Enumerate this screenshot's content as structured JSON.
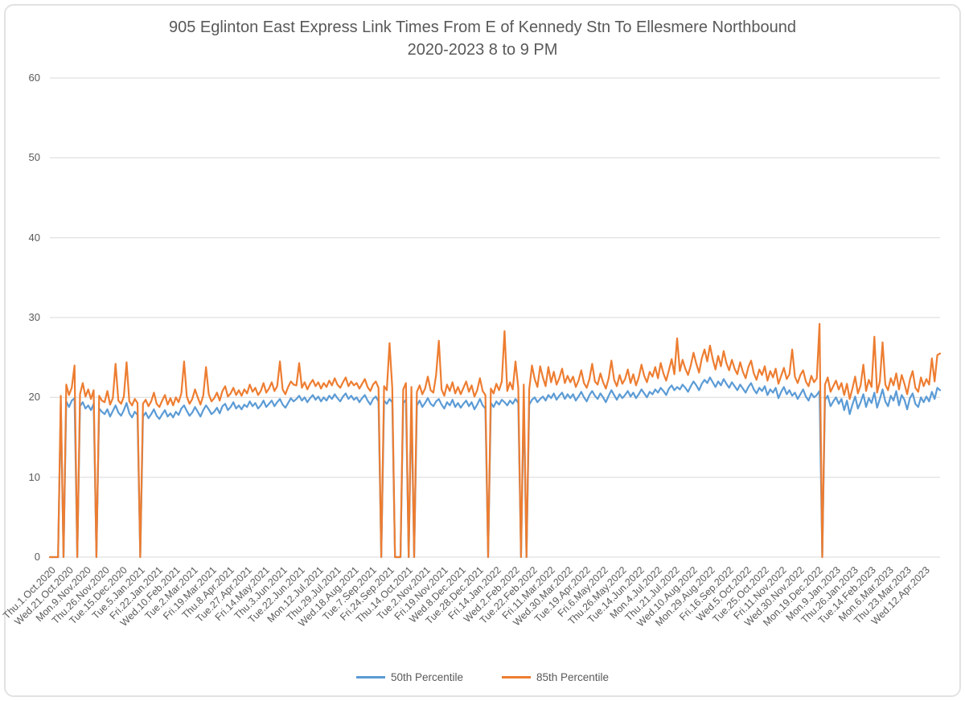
{
  "chart": {
    "title_lines": [
      "905 Eglinton East Express Link Times From E of Kennedy Stn To Ellesmere Northbound",
      "2020-2023 8 to 9 PM"
    ]
  },
  "colors": {
    "series_50th": "#5B9BD5",
    "series_85th": "#ED7D31",
    "gridline": "#D9D9D9",
    "text": "#595959"
  },
  "chart_data": {
    "type": "line",
    "title": "905 Eglinton East Express Link Times From E of Kennedy Stn To Ellesmere Northbound 2020-2023 8 to 9 PM",
    "xlabel": "",
    "ylabel": "",
    "ylim": [
      0,
      60
    ],
    "y_ticks": [
      0,
      10,
      20,
      30,
      40,
      50,
      60
    ],
    "grid": true,
    "legend_position": "bottom",
    "categories": [
      "Thu.1.Oct.2020",
      "Wed.21.Oct.2020",
      "Mon.9.Nov.2020",
      "Thu.26.Nov.2020",
      "Tue.15.Dec.2020",
      "Tue.5.Jan.2021",
      "Fri.22.Jan.2021",
      "Wed.10.Feb.2021",
      "Tue.2.Mar.2021",
      "Fri.19.Mar.2021",
      "Thu.8.Apr.2021",
      "Tue.27.Apr.2021",
      "Fri.14.May.2021",
      "Thu.3.Jun.2021",
      "Tue.22.Jun.2021",
      "Mon.12.Jul.2021",
      "Thu.29.Jul.2021",
      "Wed.18.Aug.2021",
      "Tue.7.Sep.2021",
      "Fri.24.Sep.2021",
      "Thu.14.Oct.2021",
      "Tue.2.Nov.2021",
      "Fri.19.Nov.2021",
      "Wed.8.Dec.2021",
      "Tue.28.Dec.2021",
      "Fri.14.Jan.2022",
      "Wed.2.Feb.2022",
      "Tue.22.Feb.2022",
      "Fri.11.Mar.2022",
      "Wed.30.Mar.2022",
      "Tue.19.Apr.2022",
      "Fri.6.May.2022",
      "Thu.26.May.2022",
      "Tue.14.Jun.2022",
      "Mon.4.Jul.2022",
      "Thu.21.Jul.2022",
      "Wed.10.Aug.2022",
      "Mon.29.Aug.2022",
      "Fri.16.Sep.2022",
      "Wed.5.Oct.2022",
      "Tue.25.Oct.2022",
      "Fri.11.Nov.2022",
      "Wed.30.Nov.2022",
      "Mon.19.Dec.2022",
      "Mon.9.Jan.2023",
      "Thu.26.Jan.2023",
      "Tue.14.Feb.2023",
      "Mon.6.Mar.2023",
      "Thu.23.Mar.2023",
      "Wed.12.Apr.2023"
    ],
    "category_point_interval": 13,
    "points_per_original_series": 650,
    "series": [
      {
        "name": "50th Percentile",
        "color": "#5B9BD5",
        "values": [
          0,
          0,
          0,
          0,
          19.2,
          0,
          19.5,
          18.8,
          19.6,
          19.9,
          0,
          18.9,
          19.4,
          18.6,
          19,
          18.4,
          19.2,
          0,
          18.6,
          18.2,
          17.9,
          18.5,
          17.6,
          18.3,
          19,
          18.1,
          17.7,
          18.4,
          19.3,
          18,
          17.5,
          18.2,
          17.8,
          0,
          17.6,
          18.1,
          17.4,
          17.9,
          18.5,
          17.7,
          17.3,
          17.9,
          18.4,
          17.6,
          18,
          17.5,
          18.2,
          17.8,
          18.6,
          19,
          18.3,
          17.7,
          18.1,
          18.8,
          18.2,
          17.6,
          18.4,
          19,
          18.5,
          17.9,
          18.2,
          18.7,
          18,
          18.9,
          19.2,
          18.4,
          18.8,
          19.4,
          18.6,
          19,
          18.5,
          19.1,
          18.8,
          19.5,
          18.9,
          19.3,
          18.6,
          19,
          19.6,
          18.8,
          19.2,
          19.6,
          18.9,
          19.4,
          19.8,
          19.1,
          18.7,
          19.3,
          19.9,
          19.5,
          19.8,
          20.2,
          19.6,
          20,
          19.4,
          19.9,
          20.3,
          19.7,
          20.1,
          19.5,
          20,
          19.6,
          20.2,
          19.8,
          20.4,
          19.9,
          19.5,
          20.1,
          20.5,
          19.8,
          20.2,
          19.7,
          20,
          19.4,
          19.9,
          20.3,
          19.6,
          19.1,
          19.8,
          20.1,
          19.5,
          0,
          19.6,
          19.2,
          19.8,
          19.4,
          0,
          0,
          0,
          19.3,
          19.7,
          0,
          19.5,
          0,
          19,
          19.6,
          18.8,
          19.3,
          19.9,
          19.2,
          18.9,
          19.5,
          19.8,
          19.1,
          18.6,
          19.4,
          19,
          19.7,
          18.8,
          19.3,
          18.7,
          19.2,
          19.6,
          18.9,
          19.4,
          18.5,
          19.1,
          19.8,
          19,
          18.6,
          0,
          19.3,
          18.8,
          19.5,
          19.1,
          19.7,
          19.4,
          19,
          19.6,
          19.2,
          19.8,
          19.3,
          0,
          19.5,
          0,
          19.1,
          19.7,
          20,
          19.4,
          19.8,
          20.1,
          19.6,
          20.3,
          19.9,
          20.5,
          19.7,
          20.2,
          20.6,
          19.8,
          20.4,
          19.9,
          20.4,
          19.6,
          20.1,
          20.7,
          20,
          19.5,
          20.3,
          20.8,
          20.2,
          19.8,
          20.5,
          20,
          19.4,
          20.2,
          20.9,
          20.3,
          19.7,
          20.4,
          19.9,
          20.3,
          20.8,
          20.1,
          20.6,
          19.9,
          20.4,
          21,
          20.5,
          20,
          20.7,
          20.4,
          21,
          20.6,
          21.2,
          20.8,
          20.3,
          21.1,
          21.5,
          20.9,
          21.3,
          21,
          21.6,
          21.2,
          20.7,
          21.4,
          22,
          21.5,
          20.9,
          21.7,
          22.2,
          21.8,
          22.5,
          21.9,
          21.3,
          22,
          21.5,
          22.3,
          21.7,
          21.2,
          21.9,
          21.4,
          20.9,
          21.6,
          21.1,
          20.6,
          21.3,
          21.8,
          21,
          20.5,
          21.2,
          20.8,
          21.4,
          20.3,
          21,
          20.6,
          21.2,
          19.9,
          20.7,
          21.3,
          20.4,
          20.9,
          20.2,
          20.6,
          19.8,
          20.4,
          21,
          20.1,
          19.6,
          20.5,
          20,
          20.3,
          20.8,
          0,
          19.7,
          20.2,
          18.9,
          19.5,
          20,
          19.2,
          19.8,
          18.4,
          19.6,
          17.9,
          19.1,
          20.1,
          18.6,
          19.4,
          20.4,
          18.8,
          19.9,
          19.3,
          20.6,
          18.7,
          19.8,
          21,
          19.5,
          18.9,
          20.2,
          19.6,
          20.8,
          19,
          20.3,
          19.7,
          18.5,
          19.9,
          20.5,
          19.2,
          18.8,
          20,
          19.4,
          20.1,
          19.5,
          20.7,
          19.8,
          21.2,
          20.9
        ]
      },
      {
        "name": "85th Percentile",
        "color": "#ED7D31",
        "values": [
          0,
          0,
          0,
          0,
          20.2,
          0,
          21.6,
          20.3,
          21.2,
          24,
          0,
          20.4,
          21.8,
          20.1,
          21,
          19.8,
          20.9,
          0,
          20.2,
          19.6,
          19.4,
          20.8,
          19.1,
          19.9,
          24.2,
          19.6,
          19.2,
          20.1,
          24.4,
          19.5,
          19,
          19.8,
          19.3,
          0,
          19.2,
          19.7,
          18.9,
          19.5,
          20.6,
          19.2,
          18.8,
          19.6,
          20.3,
          19.1,
          19.9,
          19,
          20,
          19.4,
          20.5,
          24.5,
          20.1,
          19.2,
          19.8,
          21,
          20,
          19.1,
          20.2,
          23.8,
          20.4,
          19.5,
          19.9,
          20.6,
          19.6,
          20.8,
          21.4,
          20.1,
          20.5,
          21.2,
          20.3,
          20.9,
          20.2,
          21,
          20.5,
          21.6,
          20.7,
          21.2,
          20.3,
          20.8,
          21.8,
          20.6,
          21.1,
          21.9,
          20.8,
          21.4,
          24.5,
          21,
          20.4,
          21.3,
          22,
          21.6,
          21.5,
          24.3,
          21.2,
          21.9,
          21,
          21.7,
          22.2,
          21.4,
          21.9,
          21.1,
          21.8,
          21.3,
          22.1,
          21.5,
          22.4,
          21.6,
          21.2,
          21.9,
          22.5,
          21.4,
          22,
          21.5,
          21.8,
          21.1,
          21.7,
          22.3,
          21.3,
          20.8,
          21.6,
          22,
          21.2,
          0,
          21.4,
          20.9,
          26.8,
          21.2,
          0,
          0,
          0,
          21,
          21.8,
          0,
          21.3,
          0,
          20.7,
          21.5,
          20.4,
          21.1,
          22.6,
          20.9,
          20.6,
          22.8,
          27.1,
          21,
          20.2,
          21.6,
          20.8,
          21.9,
          20.5,
          21.3,
          20.4,
          21.2,
          22,
          20.7,
          21.5,
          20.1,
          20.9,
          22.4,
          20.8,
          20.3,
          0,
          21.1,
          20.5,
          21.7,
          20.9,
          22,
          28.3,
          20.8,
          21.9,
          21,
          24.5,
          21.2,
          0,
          21.6,
          0,
          21,
          24,
          22.3,
          21.3,
          23.9,
          22.5,
          21.4,
          23.8,
          21.9,
          23.2,
          21.6,
          22.4,
          23.6,
          21.8,
          22.7,
          21.9,
          22.6,
          21.3,
          22.1,
          23.4,
          21.8,
          21.2,
          22.3,
          24.2,
          22,
          21.6,
          23,
          21.9,
          21.1,
          22.4,
          24.6,
          22.2,
          21.4,
          22.8,
          21.7,
          22.3,
          23.5,
          21.8,
          22.9,
          21.5,
          22.5,
          24.1,
          22.7,
          21.9,
          23.2,
          22.6,
          23.8,
          22.4,
          24.3,
          23,
          22.1,
          23.4,
          24.8,
          22.9,
          27.4,
          23.3,
          24.7,
          23.6,
          22.8,
          24,
          25.6,
          24.2,
          23.1,
          24.9,
          26,
          24.5,
          26.5,
          24.8,
          23.5,
          25.2,
          23.9,
          25.8,
          24.3,
          23.4,
          24.7,
          23.6,
          22.9,
          24.4,
          23.2,
          22.4,
          23.8,
          24.6,
          23,
          22.2,
          23.5,
          22.8,
          23.9,
          22.1,
          23.3,
          22.5,
          23.6,
          21.7,
          22.7,
          23.7,
          22.3,
          22.9,
          26,
          22.6,
          21.8,
          22.8,
          23.4,
          22,
          21.4,
          22.7,
          21.9,
          22.4,
          29.2,
          0,
          21.6,
          22.5,
          20.7,
          21.4,
          22.1,
          21,
          21.8,
          20.3,
          21.7,
          19.8,
          21.1,
          22.6,
          20.5,
          21.5,
          24.1,
          20.8,
          22.2,
          21.3,
          27.6,
          20.6,
          22,
          26.9,
          21.6,
          20.9,
          22.4,
          21.5,
          23,
          21,
          22.8,
          21.7,
          20.4,
          22.2,
          23.3,
          21.2,
          20.7,
          22.5,
          21.4,
          22.3,
          21.6,
          24.9,
          22,
          25.3,
          25.5
        ]
      }
    ]
  }
}
